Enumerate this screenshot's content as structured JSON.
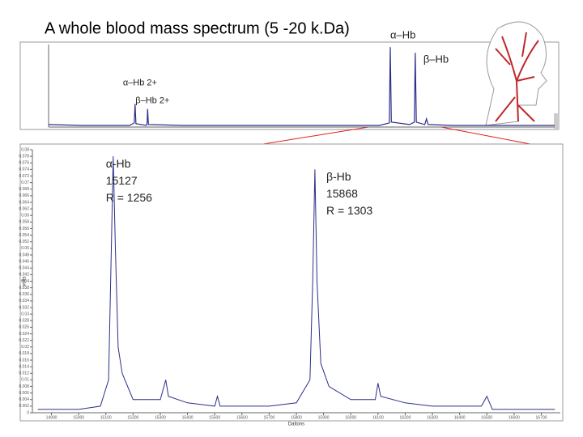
{
  "title": "A whole blood mass spectrum (5 -20 k.Da)",
  "chart_data": [
    {
      "type": "line",
      "xlim": [
        5000,
        20000
      ],
      "ylim": [
        0,
        1
      ],
      "color": "#2b2f8a",
      "annotations": [
        {
          "text": "α–Hb 2+",
          "x": 7564,
          "y": 0.28
        },
        {
          "text": "β–Hb 2+",
          "x": 7934,
          "y": 0.22
        },
        {
          "text": "α–Hb",
          "x": 15127,
          "y": 0.97
        },
        {
          "text": "β–Hb",
          "x": 15868,
          "y": 0.9
        }
      ],
      "x": [
        5000,
        6000,
        7400,
        7540,
        7564,
        7590,
        7900,
        7920,
        7934,
        7960,
        9000,
        14800,
        15100,
        15127,
        15160,
        15700,
        15840,
        15868,
        15900,
        16150,
        16200,
        16250,
        17000,
        20000
      ],
      "values": [
        0.03,
        0.02,
        0.02,
        0.05,
        0.28,
        0.04,
        0.02,
        0.05,
        0.22,
        0.03,
        0.02,
        0.02,
        0.05,
        0.97,
        0.06,
        0.03,
        0.06,
        0.9,
        0.06,
        0.03,
        0.1,
        0.03,
        0.02,
        0.02
      ]
    },
    {
      "type": "line",
      "xlabel": "Daltons",
      "ylabel": "volts",
      "color": "#2b2f8a",
      "xlim": [
        14830,
        16770
      ],
      "ylim": [
        0,
        0.08
      ],
      "xticks": [
        14900,
        15000,
        15100,
        15200,
        15300,
        15400,
        15500,
        15600,
        15700,
        15800,
        15900,
        16000,
        16100,
        16200,
        16300,
        16400,
        16500,
        16600,
        16700
      ],
      "yticks": [
        0,
        0.002,
        0.004,
        0.006,
        0.008,
        0.01,
        0.012,
        0.014,
        0.016,
        0.018,
        0.02,
        0.022,
        0.024,
        0.026,
        0.028,
        0.03,
        0.032,
        0.034,
        0.036,
        0.038,
        0.04,
        0.042,
        0.044,
        0.046,
        0.048,
        0.05,
        0.052,
        0.054,
        0.056,
        0.058,
        0.06,
        0.062,
        0.064,
        0.066,
        0.068,
        0.07,
        0.072,
        0.074,
        0.076,
        0.078,
        0.08
      ],
      "annotations": [
        {
          "lines": [
            "α-Hb",
            "15127",
            "R = 1256"
          ],
          "x": 15100,
          "y": 0.079
        },
        {
          "lines": [
            "β-Hb",
            "15868",
            "R = 1303"
          ],
          "x": 15910,
          "y": 0.075
        }
      ],
      "x": [
        14850,
        15000,
        15080,
        15110,
        15120,
        15127,
        15135,
        15145,
        15160,
        15180,
        15200,
        15300,
        15320,
        15330,
        15400,
        15500,
        15510,
        15520,
        15700,
        15800,
        15850,
        15860,
        15868,
        15876,
        15890,
        15920,
        16000,
        16090,
        16100,
        16110,
        16200,
        16300,
        16480,
        16500,
        16520,
        16750
      ],
      "values": [
        0.001,
        0.001,
        0.002,
        0.01,
        0.05,
        0.078,
        0.05,
        0.02,
        0.012,
        0.008,
        0.004,
        0.004,
        0.01,
        0.005,
        0.003,
        0.002,
        0.005,
        0.002,
        0.002,
        0.003,
        0.01,
        0.04,
        0.074,
        0.04,
        0.015,
        0.008,
        0.004,
        0.004,
        0.009,
        0.005,
        0.003,
        0.002,
        0.002,
        0.005,
        0.001,
        0.001
      ]
    }
  ]
}
